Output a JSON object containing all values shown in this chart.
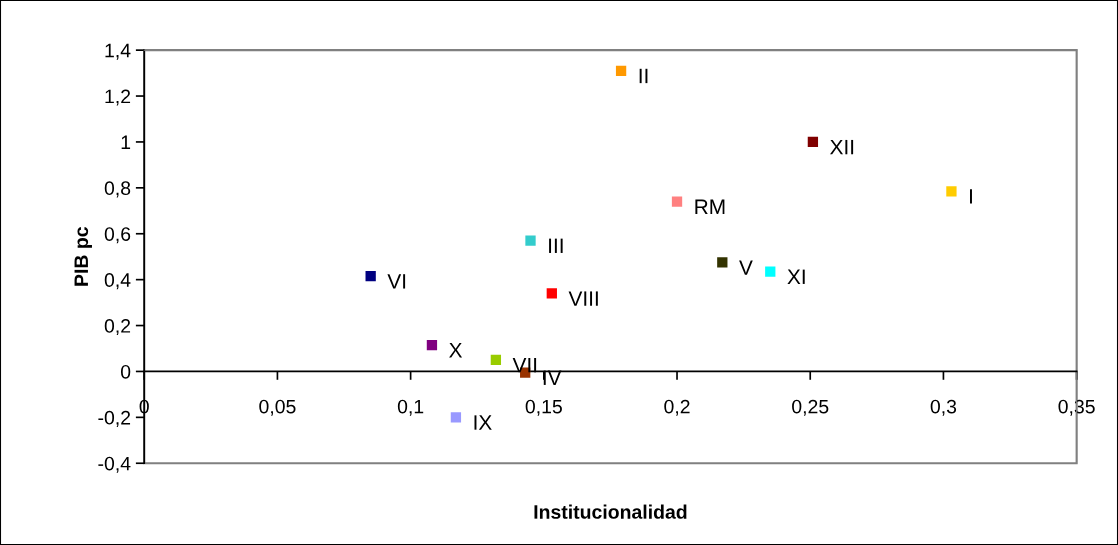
{
  "chart_data": {
    "type": "scatter",
    "xlabel": "Institucionalidad",
    "ylabel": "PIB pc",
    "xlim": [
      0,
      0.35
    ],
    "xticks": [
      {
        "value": 0,
        "label": "0"
      },
      {
        "value": 0.05,
        "label": "0,05"
      },
      {
        "value": 0.1,
        "label": "0,1"
      },
      {
        "value": 0.15,
        "label": "0,15"
      },
      {
        "value": 0.2,
        "label": "0,2"
      },
      {
        "value": 0.25,
        "label": "0,25"
      },
      {
        "value": 0.3,
        "label": "0,3"
      },
      {
        "value": 0.35,
        "label": "0,35"
      }
    ],
    "ylim": [
      -0.4,
      1.4
    ],
    "yticks": [
      {
        "value": -0.4,
        "label": "-0,4"
      },
      {
        "value": -0.2,
        "label": "-0,2"
      },
      {
        "value": 0,
        "label": "0"
      },
      {
        "value": 0.2,
        "label": "0,2"
      },
      {
        "value": 0.4,
        "label": "0,4"
      },
      {
        "value": 0.6,
        "label": "0,6"
      },
      {
        "value": 0.8,
        "label": "0,8"
      },
      {
        "value": 1,
        "label": "1"
      },
      {
        "value": 1.2,
        "label": "1,2"
      },
      {
        "value": 1.4,
        "label": "1,4"
      }
    ],
    "grid": false,
    "legend": false,
    "marker": "square",
    "series": [
      {
        "name": "I",
        "color": "#ffcc00",
        "x": [
          0.303
        ],
        "values": [
          0.785
        ]
      },
      {
        "name": "II",
        "color": "#ff9900",
        "x": [
          0.179
        ],
        "values": [
          1.31
        ]
      },
      {
        "name": "III",
        "color": "#33cccc",
        "x": [
          0.145
        ],
        "values": [
          0.57
        ]
      },
      {
        "name": "IV",
        "color": "#993300",
        "x": [
          0.143
        ],
        "values": [
          -0.005
        ]
      },
      {
        "name": "V",
        "color": "#333300",
        "x": [
          0.217
        ],
        "values": [
          0.475
        ]
      },
      {
        "name": "VI",
        "color": "#000080",
        "x": [
          0.085
        ],
        "values": [
          0.415
        ]
      },
      {
        "name": "VII",
        "color": "#99cc00",
        "x": [
          0.132
        ],
        "values": [
          0.05
        ]
      },
      {
        "name": "VIII",
        "color": "#ff0000",
        "x": [
          0.153
        ],
        "values": [
          0.34
        ]
      },
      {
        "name": "IX",
        "color": "#9999ff",
        "x": [
          0.117
        ],
        "values": [
          -0.2
        ]
      },
      {
        "name": "X",
        "color": "#800080",
        "x": [
          0.108
        ],
        "values": [
          0.115
        ]
      },
      {
        "name": "XI",
        "color": "#00ffff",
        "x": [
          0.235
        ],
        "values": [
          0.435
        ]
      },
      {
        "name": "XII",
        "color": "#800000",
        "x": [
          0.251
        ],
        "values": [
          1.0
        ]
      },
      {
        "name": "RM",
        "color": "#ff8080",
        "x": [
          0.2
        ],
        "values": [
          0.74
        ]
      }
    ]
  }
}
